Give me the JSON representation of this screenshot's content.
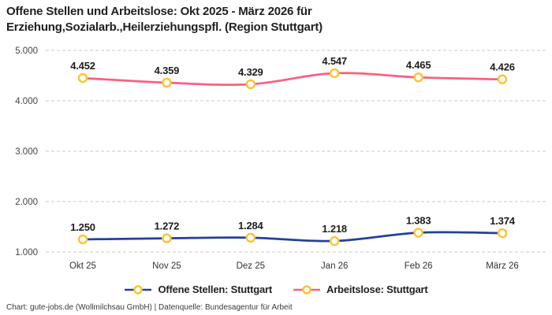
{
  "title": {
    "line1": "Offene Stellen und Arbeitslose: Okt 2025 - März 2026 für",
    "line2": "Erziehung,Sozialarb.,Heilerziehungspfl. (Region Stuttgart)"
  },
  "legend": {
    "items": [
      {
        "label": "Offene Stellen: Stuttgart",
        "color": "#24409c"
      },
      {
        "label": "Arbeitslose: Stuttgart",
        "color": "#f9617e"
      }
    ]
  },
  "footer": {
    "text": "Chart: gute-jobs.de (Wollmilchsau GmbH) | Datenquelle: Bundesagentur für Arbeit"
  },
  "colors": {
    "marker_ring": "#fcc434",
    "marker_fill": "#ffffff",
    "grid": "#c9c9c9",
    "axis_text": "#444444",
    "label_text": "#1d1d1d"
  },
  "chart_data": {
    "type": "line",
    "title": "Offene Stellen und Arbeitslose: Okt 2025 - März 2026 für Erziehung,Sozialarb.,Heilerziehungspfl. (Region Stuttgart)",
    "categories": [
      "Okt 25",
      "Nov 25",
      "Dez 25",
      "Jan 26",
      "Feb 26",
      "März 26"
    ],
    "series": [
      {
        "name": "Offene Stellen: Stuttgart",
        "color": "#24409c",
        "values": [
          1250,
          1272,
          1284,
          1218,
          1383,
          1374
        ],
        "labels": [
          "1.250",
          "1.272",
          "1.284",
          "1.218",
          "1.383",
          "1.374"
        ]
      },
      {
        "name": "Arbeitslose: Stuttgart",
        "color": "#f9617e",
        "values": [
          4452,
          4359,
          4329,
          4547,
          4465,
          4426
        ],
        "labels": [
          "4.452",
          "4.359",
          "4.329",
          "4.547",
          "4.465",
          "4.426"
        ]
      }
    ],
    "y_ticks": [
      {
        "value": 1000,
        "label": "1.000"
      },
      {
        "value": 2000,
        "label": "2.000"
      },
      {
        "value": 3000,
        "label": "3.000"
      },
      {
        "value": 4000,
        "label": "4.000"
      },
      {
        "value": 5000,
        "label": "5.000"
      }
    ],
    "ylim": [
      1000,
      5000
    ],
    "grid": "dashed-horizontal",
    "legend_position": "bottom",
    "xlabel": "",
    "ylabel": ""
  }
}
